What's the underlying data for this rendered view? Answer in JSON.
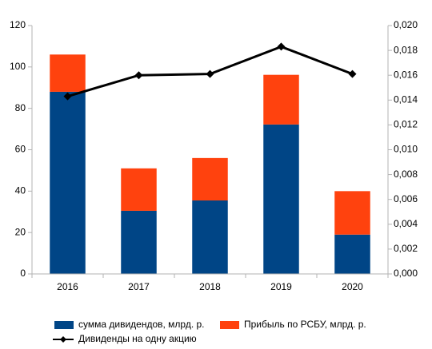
{
  "chart_data": {
    "type": "bar",
    "categories": [
      "2016",
      "2017",
      "2018",
      "2019",
      "2020"
    ],
    "series": [
      {
        "name": "сумма дивидендов, млрд. р.",
        "color": "#004586",
        "values": [
          88,
          30.5,
          35.5,
          72.2,
          19
        ]
      },
      {
        "name": "Прибыль по РСБУ, млрд. р.",
        "color": "#ff420e",
        "values": [
          18,
          20.5,
          20.5,
          24,
          21
        ]
      },
      {
        "name": "Дивиденды на одну акцию",
        "color": "#000000",
        "axis": "y2",
        "values": [
          0.0143,
          0.016,
          0.0161,
          0.0183,
          0.0161
        ]
      }
    ],
    "stacked": true,
    "ylim": [
      0,
      120
    ],
    "yticks": [
      0,
      20,
      40,
      60,
      80,
      100,
      120
    ],
    "y2lim": [
      0,
      0.02
    ],
    "y2ticks": [
      {
        "value": 0,
        "label": "0,000"
      },
      {
        "value": 0.002,
        "label": "0,002"
      },
      {
        "value": 0.004,
        "label": "0,004"
      },
      {
        "value": 0.006,
        "label": "0,006"
      },
      {
        "value": 0.008,
        "label": "0,008"
      },
      {
        "value": 0.01,
        "label": "0,010"
      },
      {
        "value": 0.012,
        "label": "0,012"
      },
      {
        "value": 0.014,
        "label": "0,014"
      },
      {
        "value": 0.016,
        "label": "0,016"
      },
      {
        "value": 0.018,
        "label": "0,018"
      },
      {
        "value": 0.02,
        "label": "0,020"
      }
    ],
    "grid": false,
    "legend": "bottom"
  }
}
